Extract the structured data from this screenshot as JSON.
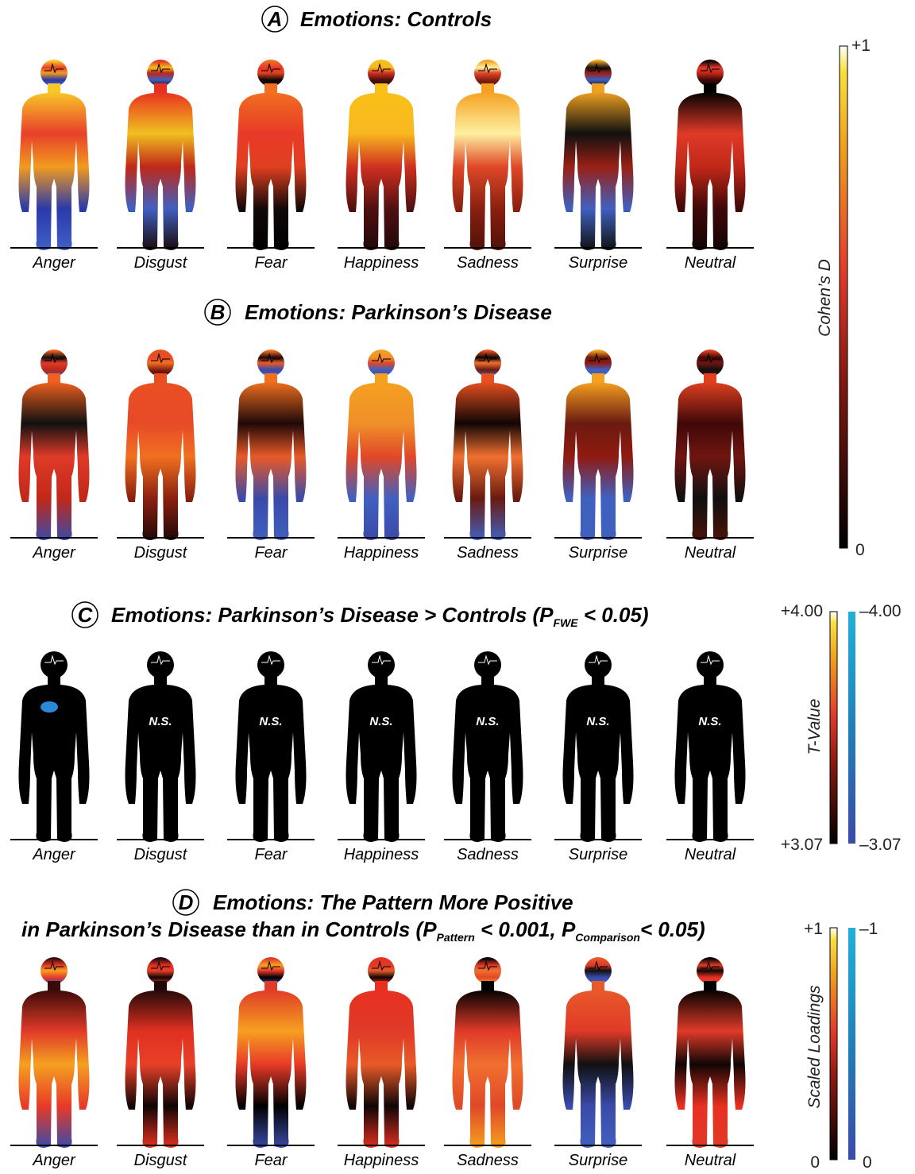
{
  "panels": [
    {
      "letter": "A",
      "title": "Emotions: Controls",
      "labels": [
        "Anger",
        "Disgust",
        "Fear",
        "Happiness",
        "Sadness",
        "Surprise",
        "Neutral"
      ]
    },
    {
      "letter": "B",
      "title": "Emotions: Parkinson’s Disease",
      "labels": [
        "Anger",
        "Disgust",
        "Fear",
        "Happiness",
        "Sadness",
        "Surprise",
        "Neutral"
      ]
    },
    {
      "letter": "C",
      "title_parts": [
        "Emotions: Parkinson’s Disease > Controls (",
        "P",
        "FWE",
        " < 0.05)"
      ],
      "labels": [
        "Anger",
        "Disgust",
        "Fear",
        "Happiness",
        "Sadness",
        "Surprise",
        "Neutral"
      ],
      "ns": [
        null,
        "N.S.",
        "N.S.",
        "N.S.",
        "N.S.",
        "N.S.",
        "N.S."
      ]
    },
    {
      "letter": "D",
      "title_line1": "Emotions: The Pattern More Positive",
      "title_parts": [
        "in Parkinson’s Disease than in Controls (",
        "P",
        "Pattern",
        " < 0.001, ",
        "P",
        "Comparison",
        "< 0.05)"
      ],
      "labels": [
        "Anger",
        "Disgust",
        "Fear",
        "Happiness",
        "Sadness",
        "Surprise",
        "Neutral"
      ]
    }
  ],
  "colorbars": {
    "cohens": {
      "label": "Cohen’s D",
      "top": "+1",
      "bottom": "0"
    },
    "tvalue": {
      "label": "T-Value",
      "pos_top": "+4.00",
      "pos_bottom": "+3.07",
      "neg_top": "–4.00",
      "neg_bottom": "–3.07"
    },
    "loadings": {
      "label": "Scaled Loadings",
      "pos_top": "+1",
      "pos_bottom": "0",
      "neg_top": "–1",
      "neg_bottom": "0"
    }
  }
}
